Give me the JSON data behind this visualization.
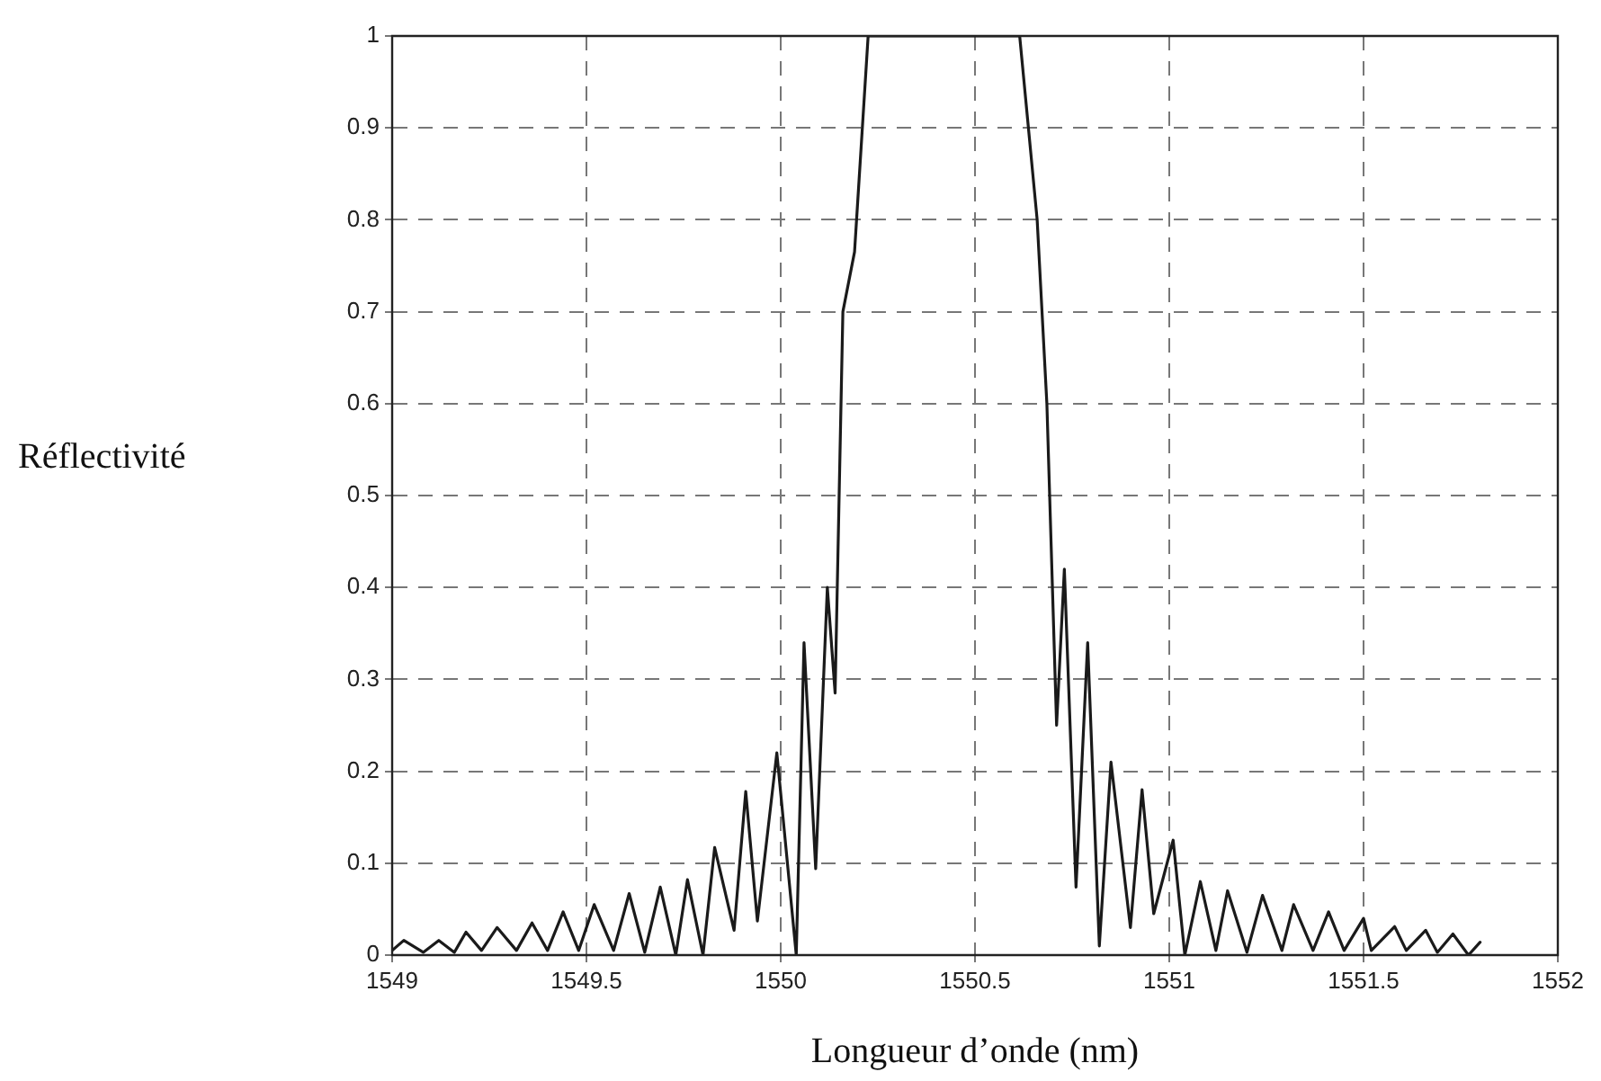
{
  "chart_data": {
    "type": "line",
    "xlabel": "Longueur d’onde (nm)",
    "ylabel": "Réflectivité",
    "x": [
      1549.0,
      1549.03,
      1549.08,
      1549.12,
      1549.16,
      1549.19,
      1549.23,
      1549.27,
      1549.32,
      1549.36,
      1549.4,
      1549.44,
      1549.48,
      1549.52,
      1549.57,
      1549.61,
      1549.65,
      1549.69,
      1549.73,
      1549.76,
      1549.8,
      1549.83,
      1549.88,
      1549.91,
      1549.94,
      1549.99,
      1550.04,
      1550.06,
      1550.09,
      1550.12,
      1550.14,
      1550.16,
      1550.19,
      1550.225,
      1550.615,
      1550.66,
      1550.685,
      1550.71,
      1550.73,
      1550.76,
      1550.79,
      1550.82,
      1550.85,
      1550.9,
      1550.93,
      1550.96,
      1551.01,
      1551.04,
      1551.08,
      1551.12,
      1551.15,
      1551.2,
      1551.24,
      1551.29,
      1551.32,
      1551.37,
      1551.41,
      1551.45,
      1551.5,
      1551.52,
      1551.58,
      1551.61,
      1551.66,
      1551.69,
      1551.73,
      1551.77,
      1551.8
    ],
    "series": [
      {
        "color": "#1a1a1a",
        "values": [
          0.005,
          0.016,
          0.003,
          0.016,
          0.003,
          0.025,
          0.005,
          0.03,
          0.005,
          0.035,
          0.005,
          0.047,
          0.005,
          0.055,
          0.005,
          0.067,
          0.003,
          0.074,
          0.0,
          0.082,
          0.0,
          0.117,
          0.027,
          0.178,
          0.037,
          0.22,
          0.0,
          0.34,
          0.094,
          0.4,
          0.285,
          0.7,
          0.765,
          1.0,
          1.0,
          0.8,
          0.6,
          0.25,
          0.42,
          0.074,
          0.34,
          0.01,
          0.21,
          0.03,
          0.18,
          0.045,
          0.125,
          0.0,
          0.08,
          0.005,
          0.07,
          0.003,
          0.065,
          0.005,
          0.055,
          0.005,
          0.047,
          0.005,
          0.04,
          0.005,
          0.031,
          0.005,
          0.027,
          0.003,
          0.023,
          0.0,
          0.014
        ]
      }
    ],
    "xlim": [
      1549,
      1552
    ],
    "xticks": [
      1549,
      1549.5,
      1550,
      1550.5,
      1551,
      1551.5,
      1552
    ],
    "ylim": [
      0,
      1
    ],
    "yticks": [
      0,
      0.1,
      0.2,
      0.3,
      0.4,
      0.5,
      0.6,
      0.7,
      0.8,
      0.9,
      1
    ],
    "grid": true,
    "line_style": "solid",
    "marker": "none",
    "legend": false
  }
}
